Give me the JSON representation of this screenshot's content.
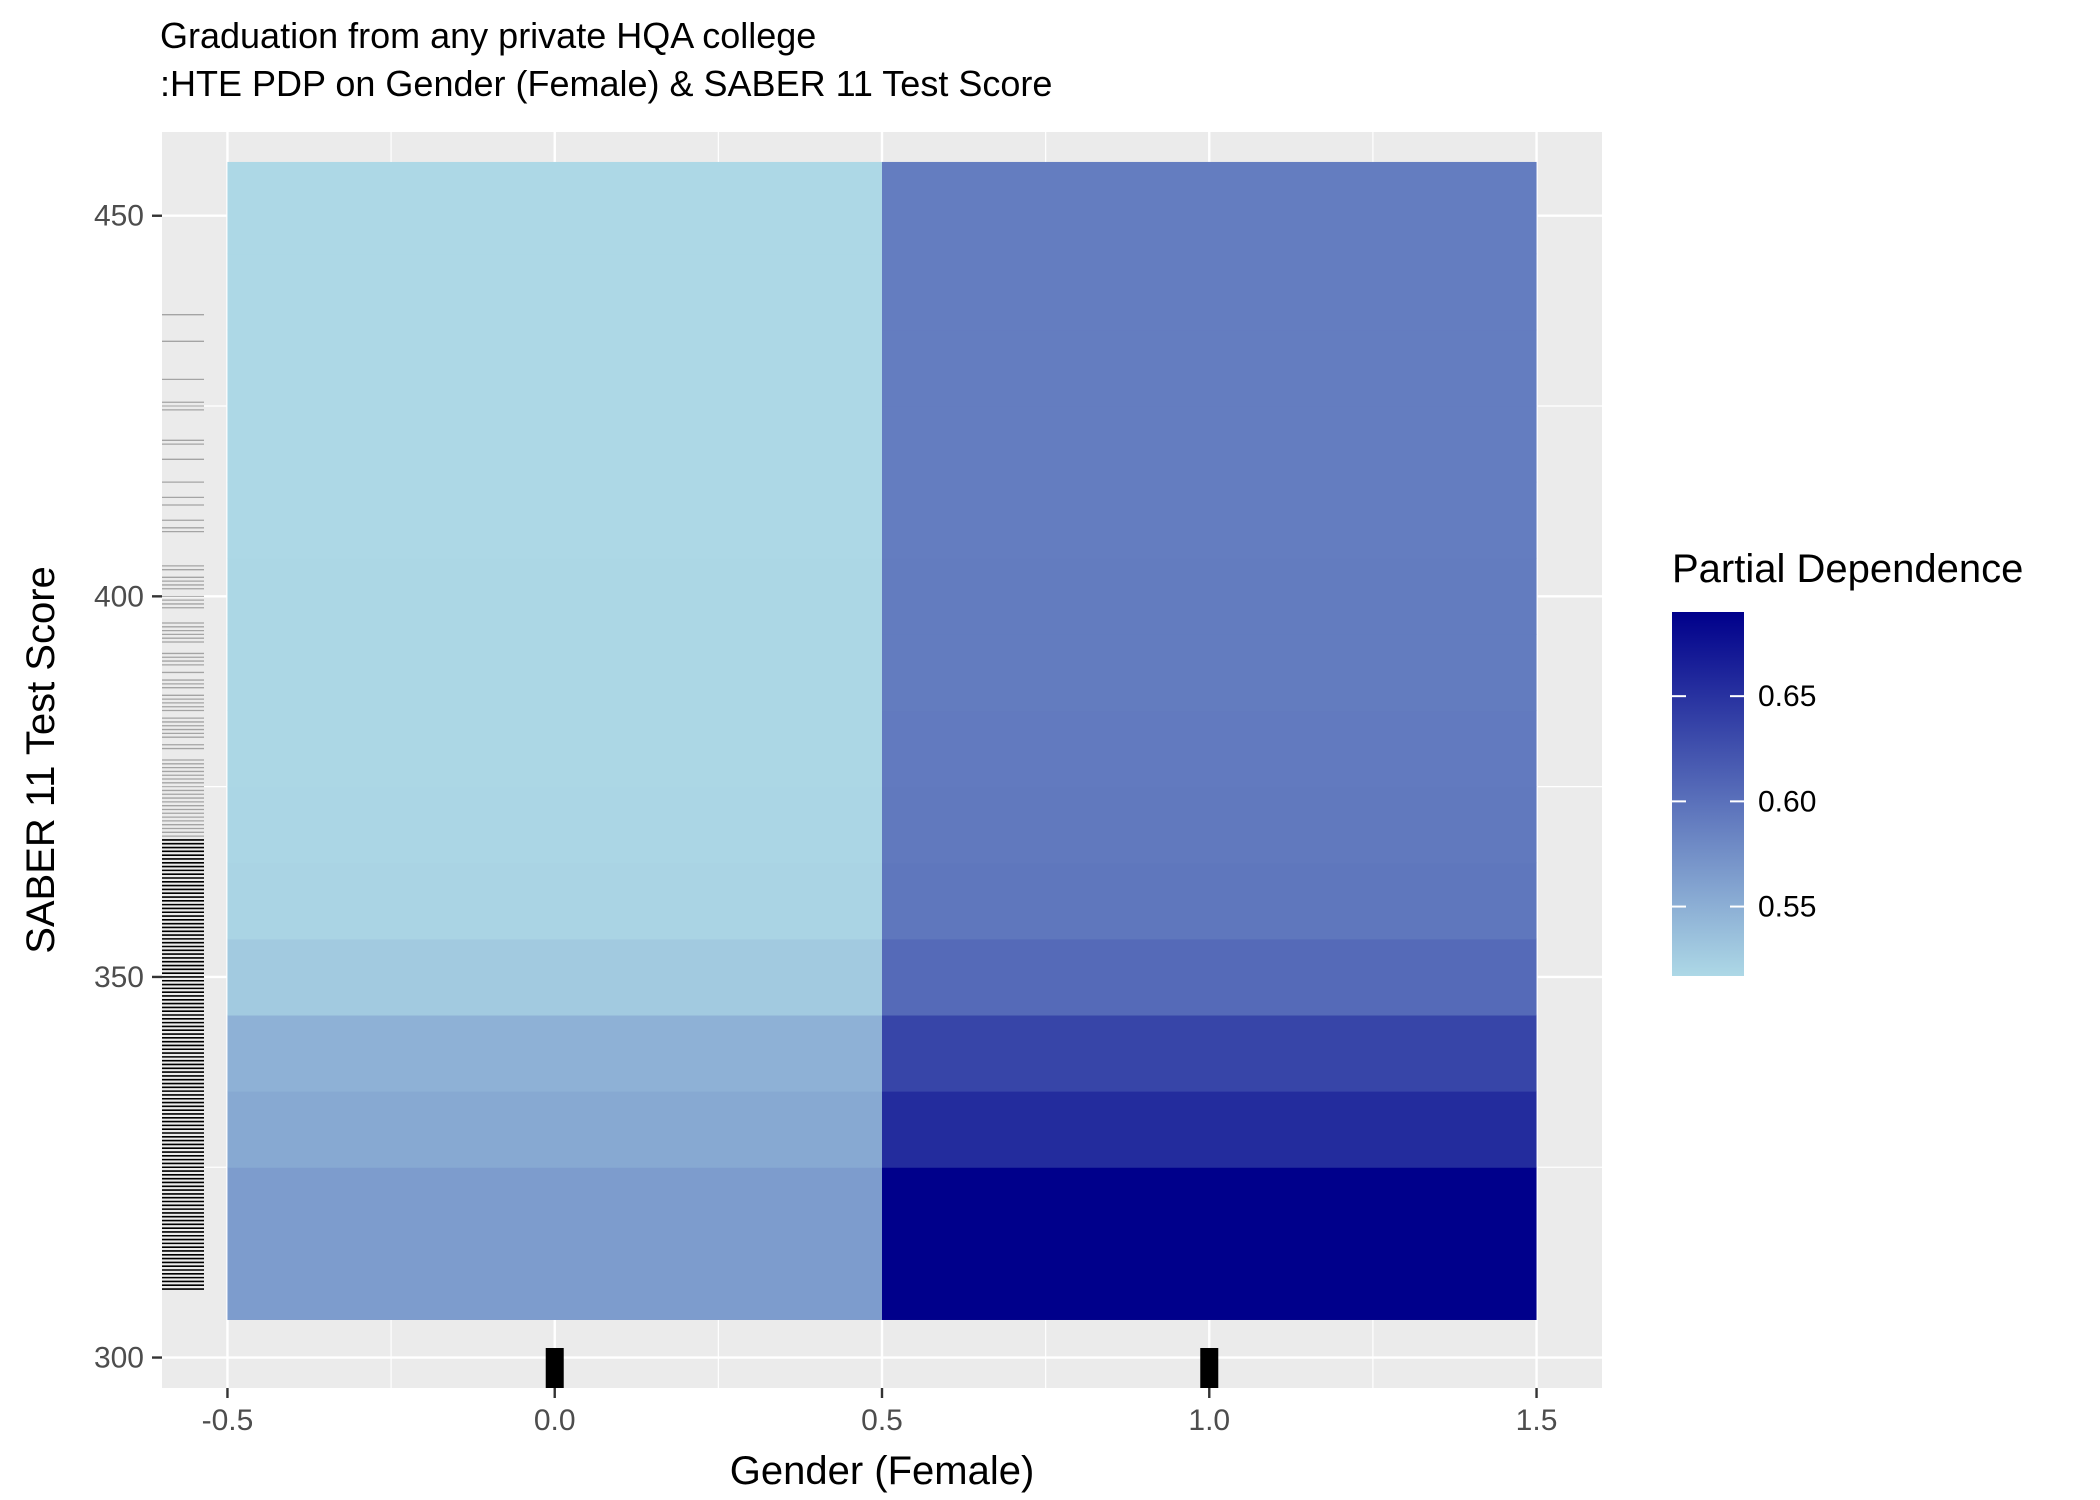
{
  "chart_data": {
    "type": "heatmap",
    "title": "Graduation from any private HQA college",
    "subtitle": ":HTE PDP on Gender (Female) & SABER 11 Test Score",
    "xlabel": "Gender (Female)",
    "ylabel": "SABER 11 Test Score",
    "xlim": [
      -0.6,
      1.6
    ],
    "ylim": [
      296,
      461
    ],
    "x_ticks": [
      -0.5,
      0.0,
      0.5,
      1.0,
      1.5
    ],
    "x_tick_labels": [
      "-0.5",
      "0.0",
      "0.5",
      "1.0",
      "1.5"
    ],
    "y_ticks": [
      300,
      350,
      400,
      450
    ],
    "y_tick_labels": [
      "300",
      "350",
      "400",
      "450"
    ],
    "grid": true,
    "x": [
      0,
      1
    ],
    "y": [
      315,
      330,
      340,
      350,
      360,
      370,
      380,
      390,
      400,
      410,
      420,
      430,
      440,
      450
    ],
    "y_lower_edges": [
      305,
      325,
      335,
      345,
      355,
      365,
      375,
      385,
      395,
      405,
      415,
      425,
      435,
      445
    ],
    "y_upper_edges": [
      325,
      335,
      345,
      355,
      365,
      375,
      385,
      395,
      405,
      415,
      425,
      435,
      445,
      457
    ],
    "values": [
      [
        0.565,
        0.69
      ],
      [
        0.555,
        0.655
      ],
      [
        0.548,
        0.635
      ],
      [
        0.528,
        0.605
      ],
      [
        0.52,
        0.595
      ],
      [
        0.519,
        0.593
      ],
      [
        0.518,
        0.592
      ],
      [
        0.518,
        0.591
      ],
      [
        0.518,
        0.591
      ],
      [
        0.517,
        0.59
      ],
      [
        0.517,
        0.59
      ],
      [
        0.517,
        0.59
      ],
      [
        0.517,
        0.59
      ],
      [
        0.517,
        0.59
      ]
    ],
    "legend": {
      "title": "Partial Dependence",
      "placement": "right",
      "min": 0.517,
      "max": 0.69,
      "low_color": "#ADD8E6",
      "high_color": "#00008B",
      "ticks": [
        0.55,
        0.6,
        0.65
      ],
      "tick_labels": [
        "0.55",
        "0.60",
        "0.65"
      ]
    },
    "rug_x": [
      0,
      1
    ],
    "rug_y_range": [
      309,
      453
    ],
    "panel_background": "#EBEBEB",
    "grid_color": "#FFFFFF"
  }
}
